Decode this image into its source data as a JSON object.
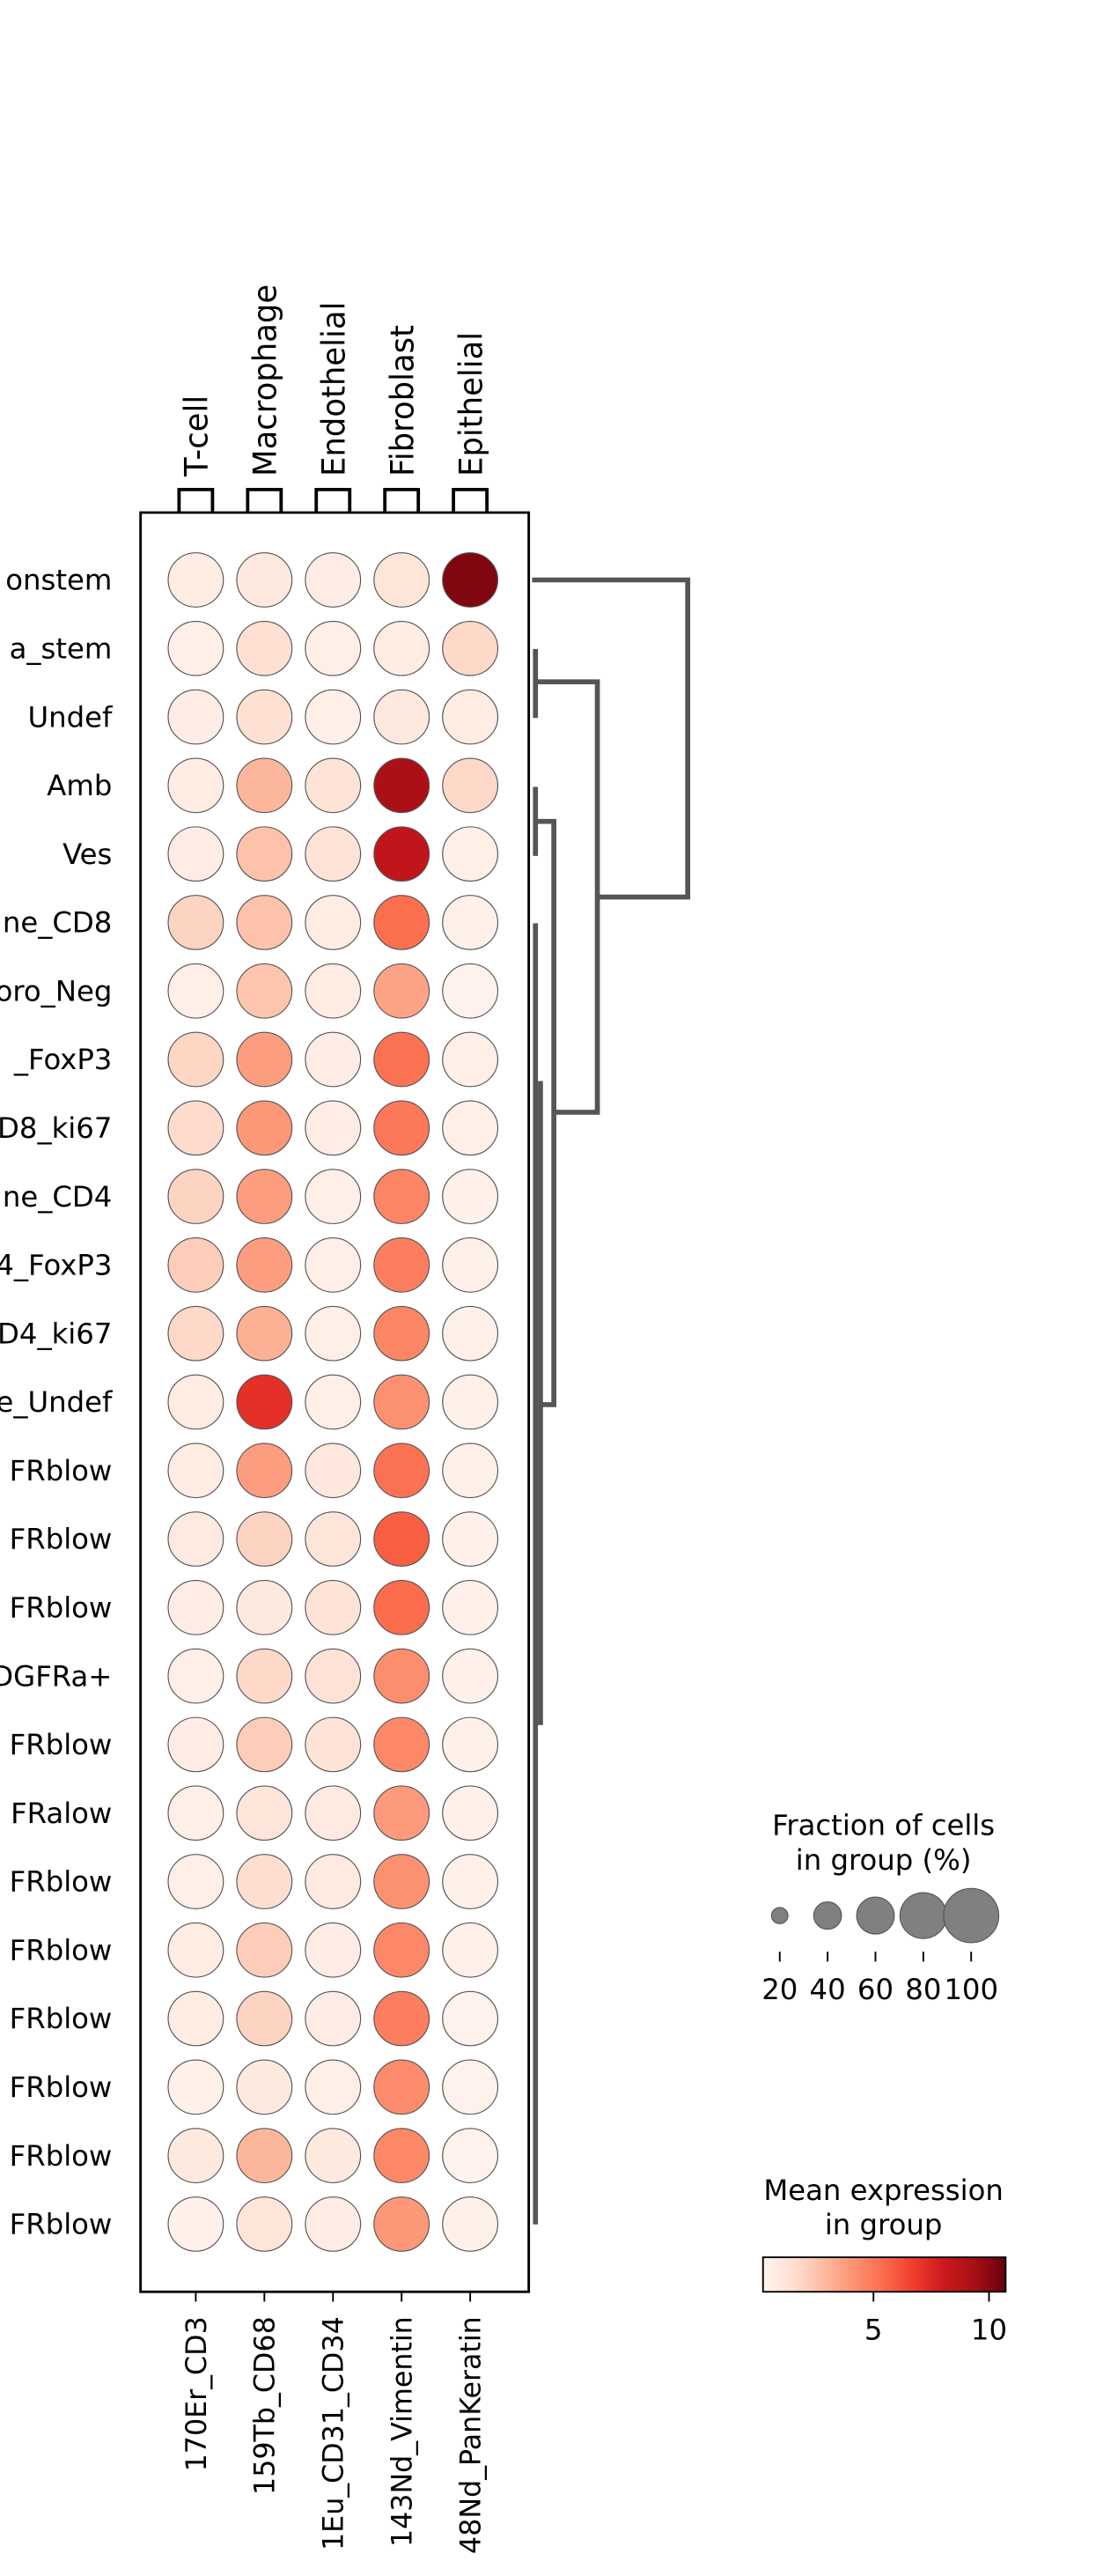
{
  "chart_data": {
    "type": "dotplot",
    "categories": [
      "onstem",
      "a_stem",
      "Undef",
      "Amb",
      "Ves",
      "ne_CD8",
      "oro_Neg",
      "_FoxP3",
      "D8_ki67",
      "ne_CD4",
      "4_FoxP3",
      "D4_ki67",
      "e_Undef",
      "FRblow",
      "FRblow",
      "FRblow",
      "DGFRa+",
      "FRblow",
      "FRalow",
      "FRblow",
      "FRblow",
      "FRblow",
      "FRblow",
      "FRblow",
      "FRblow"
    ],
    "series": [
      {
        "name": "170Er_CD3",
        "group": "T-cell",
        "values": [
          0.8,
          0.6,
          0.7,
          0.8,
          0.7,
          2.0,
          0.6,
          1.9,
          1.7,
          2.0,
          2.2,
          1.8,
          0.8,
          0.8,
          0.9,
          0.7,
          0.6,
          0.7,
          0.6,
          0.6,
          0.8,
          0.8,
          0.5,
          1.0,
          0.5
        ],
        "fractions": [
          100,
          100,
          100,
          100,
          100,
          100,
          100,
          100,
          100,
          100,
          100,
          100,
          100,
          100,
          100,
          100,
          100,
          100,
          100,
          100,
          100,
          100,
          100,
          100,
          100
        ]
      },
      {
        "name": "159Tb_CD68",
        "group": "Macrophage",
        "values": [
          1.0,
          1.5,
          1.5,
          3.0,
          2.6,
          2.6,
          2.5,
          3.8,
          4.0,
          3.8,
          3.8,
          3.2,
          7.2,
          3.8,
          2.0,
          1.0,
          1.8,
          2.2,
          1.2,
          1.6,
          2.2,
          2.0,
          1.0,
          3.0,
          1.2
        ],
        "fractions": [
          100,
          100,
          100,
          100,
          100,
          100,
          100,
          100,
          100,
          100,
          100,
          100,
          100,
          100,
          100,
          100,
          100,
          100,
          100,
          100,
          100,
          100,
          100,
          100,
          100
        ]
      },
      {
        "name": "1Eu_CD31_CD34",
        "group": "Endothelial",
        "values": [
          0.7,
          0.6,
          0.6,
          1.3,
          1.3,
          0.8,
          0.8,
          0.7,
          0.7,
          0.6,
          0.6,
          0.6,
          0.6,
          1.1,
          1.2,
          1.3,
          1.4,
          1.3,
          0.9,
          0.9,
          0.7,
          0.7,
          0.6,
          1.0,
          0.7
        ],
        "fractions": [
          100,
          100,
          100,
          100,
          100,
          100,
          100,
          100,
          100,
          100,
          100,
          100,
          100,
          100,
          100,
          100,
          100,
          100,
          100,
          100,
          100,
          100,
          100,
          100,
          100
        ]
      },
      {
        "name": "143Nd_Vimentin",
        "group": "Fibroblast",
        "values": [
          1.2,
          0.8,
          1.0,
          9.2,
          8.5,
          5.3,
          3.6,
          5.2,
          5.0,
          4.6,
          4.8,
          4.6,
          4.2,
          5.2,
          5.8,
          5.4,
          4.3,
          4.5,
          3.9,
          4.2,
          4.5,
          4.8,
          4.4,
          4.5,
          4.0
        ],
        "fractions": [
          100,
          100,
          100,
          100,
          100,
          100,
          100,
          100,
          100,
          100,
          100,
          100,
          100,
          100,
          100,
          100,
          100,
          100,
          100,
          100,
          100,
          100,
          100,
          100,
          100
        ]
      },
      {
        "name": "48Nd_PanKeratin",
        "group": "Epithelial",
        "values": [
          10.2,
          1.8,
          0.8,
          1.8,
          0.6,
          0.5,
          0.4,
          0.6,
          0.6,
          0.5,
          0.5,
          0.5,
          0.5,
          0.5,
          0.5,
          0.5,
          0.5,
          0.5,
          0.5,
          0.5,
          0.5,
          0.4,
          0.4,
          0.4,
          0.5
        ],
        "fractions": [
          100,
          100,
          100,
          100,
          100,
          100,
          100,
          100,
          100,
          100,
          100,
          100,
          100,
          100,
          100,
          100,
          100,
          100,
          100,
          100,
          100,
          100,
          100,
          100,
          100
        ]
      }
    ],
    "colormap": "Reds",
    "clim": [
      0.22,
      10.72
    ],
    "colorbar_ticks": [
      5,
      10
    ],
    "colorbar_title": [
      "Mean expression",
      "in group"
    ],
    "size_legend_title": [
      "Fraction of cells",
      "in group (%)"
    ],
    "size_legend_values": [
      20,
      40,
      60,
      80,
      100
    ]
  }
}
